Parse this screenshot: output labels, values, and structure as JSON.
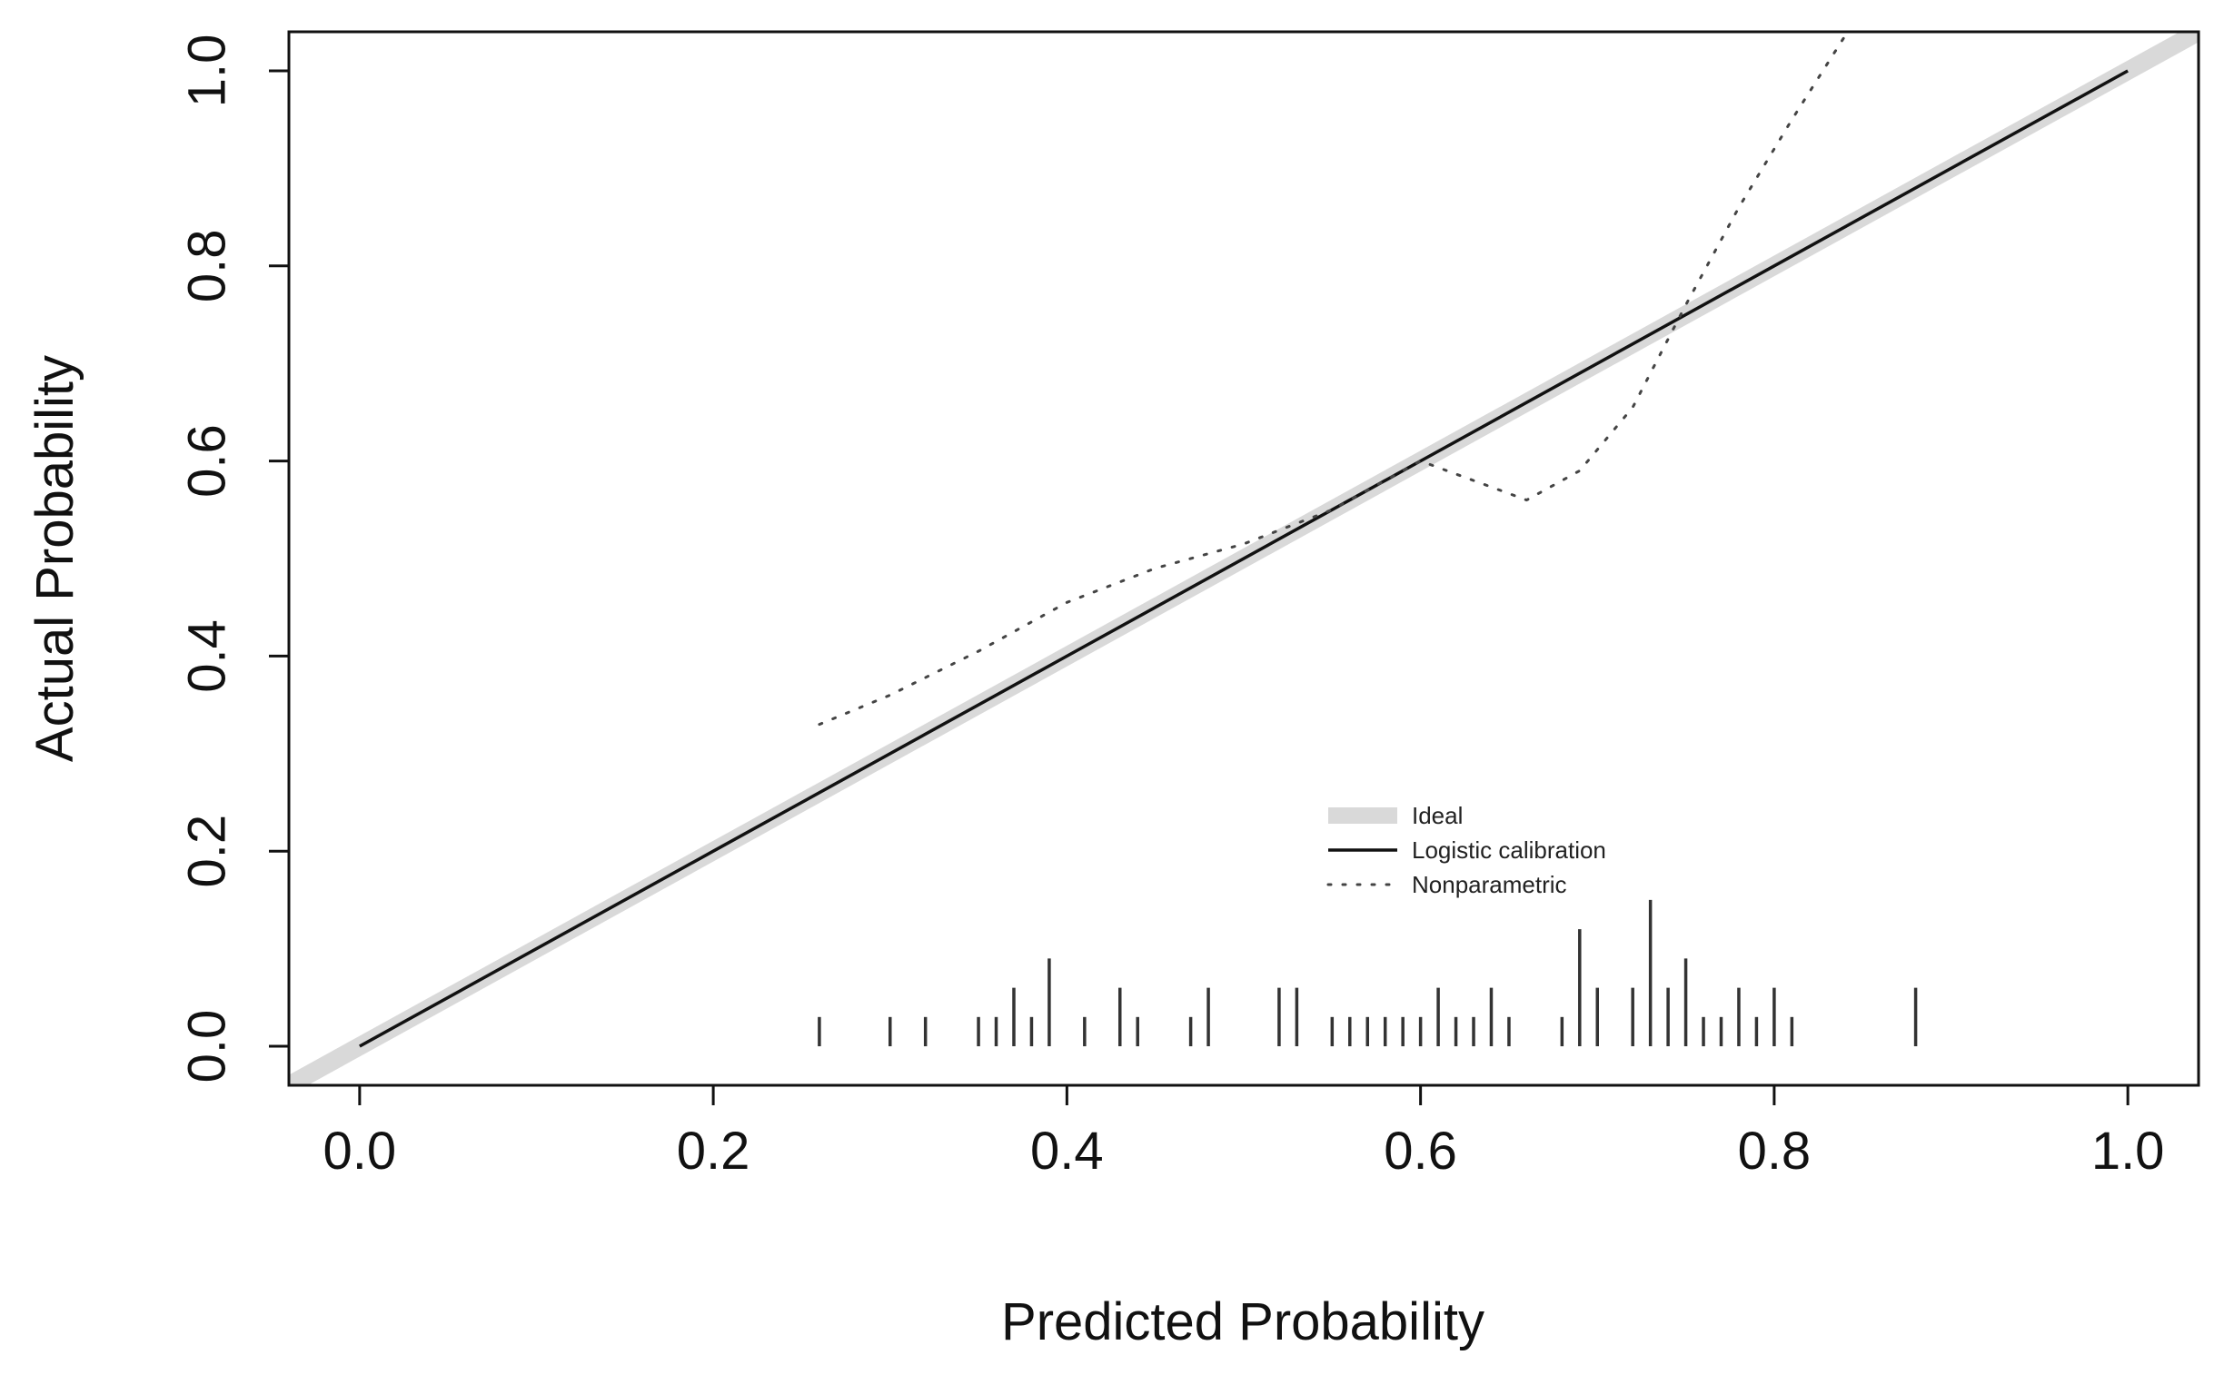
{
  "chart_data": {
    "type": "line",
    "xlabel": "Predicted Probability",
    "ylabel": "Actual Probability",
    "xlim": [
      -0.04,
      1.04
    ],
    "ylim": [
      -0.04,
      1.04
    ],
    "x_ticks": [
      0.0,
      0.2,
      0.4,
      0.6,
      0.8,
      1.0
    ],
    "x_tick_labels": [
      "0.0",
      "0.2",
      "0.4",
      "0.6",
      "0.8",
      "1.0"
    ],
    "y_ticks": [
      0.0,
      0.2,
      0.4,
      0.6,
      0.8,
      1.0
    ],
    "y_tick_labels": [
      "0.0",
      "0.2",
      "0.4",
      "0.6",
      "0.8",
      "1.0"
    ],
    "grid": false,
    "legend_position": "bottom-center",
    "series": [
      {
        "name": "Ideal",
        "style": "thick-light-gray",
        "color": "#d9d9d9",
        "x": [
          -0.04,
          1.04
        ],
        "y": [
          -0.04,
          1.04
        ]
      },
      {
        "name": "Logistic calibration",
        "style": "solid",
        "color": "#111111",
        "x": [
          0.0,
          0.2,
          0.4,
          0.6,
          0.8,
          1.0
        ],
        "y": [
          0.0,
          0.2,
          0.4,
          0.6,
          0.8,
          1.0
        ]
      },
      {
        "name": "Nonparametric",
        "style": "dotted",
        "color": "#444444",
        "x": [
          0.26,
          0.3,
          0.35,
          0.4,
          0.45,
          0.5,
          0.55,
          0.6,
          0.63,
          0.66,
          0.69,
          0.72,
          0.75,
          0.78,
          0.81,
          0.845
        ],
        "y": [
          0.33,
          0.36,
          0.405,
          0.455,
          0.49,
          0.515,
          0.55,
          0.6,
          0.58,
          0.56,
          0.59,
          0.655,
          0.76,
          0.86,
          0.95,
          1.05
        ]
      }
    ],
    "distribution_ticks": {
      "x": [
        0.26,
        0.3,
        0.32,
        0.35,
        0.36,
        0.37,
        0.38,
        0.39,
        0.41,
        0.43,
        0.44,
        0.47,
        0.48,
        0.52,
        0.53,
        0.55,
        0.56,
        0.57,
        0.58,
        0.59,
        0.6,
        0.61,
        0.62,
        0.63,
        0.64,
        0.65,
        0.68,
        0.69,
        0.7,
        0.72,
        0.73,
        0.74,
        0.75,
        0.76,
        0.77,
        0.78,
        0.79,
        0.8,
        0.81,
        0.88
      ],
      "y": [
        0.03,
        0.03,
        0.03,
        0.03,
        0.03,
        0.06,
        0.03,
        0.09,
        0.03,
        0.06,
        0.03,
        0.03,
        0.06,
        0.06,
        0.06,
        0.03,
        0.03,
        0.03,
        0.03,
        0.03,
        0.03,
        0.06,
        0.03,
        0.03,
        0.06,
        0.03,
        0.03,
        0.12,
        0.06,
        0.06,
        0.15,
        0.06,
        0.09,
        0.03,
        0.03,
        0.06,
        0.03,
        0.06,
        0.03,
        0.06
      ]
    }
  }
}
